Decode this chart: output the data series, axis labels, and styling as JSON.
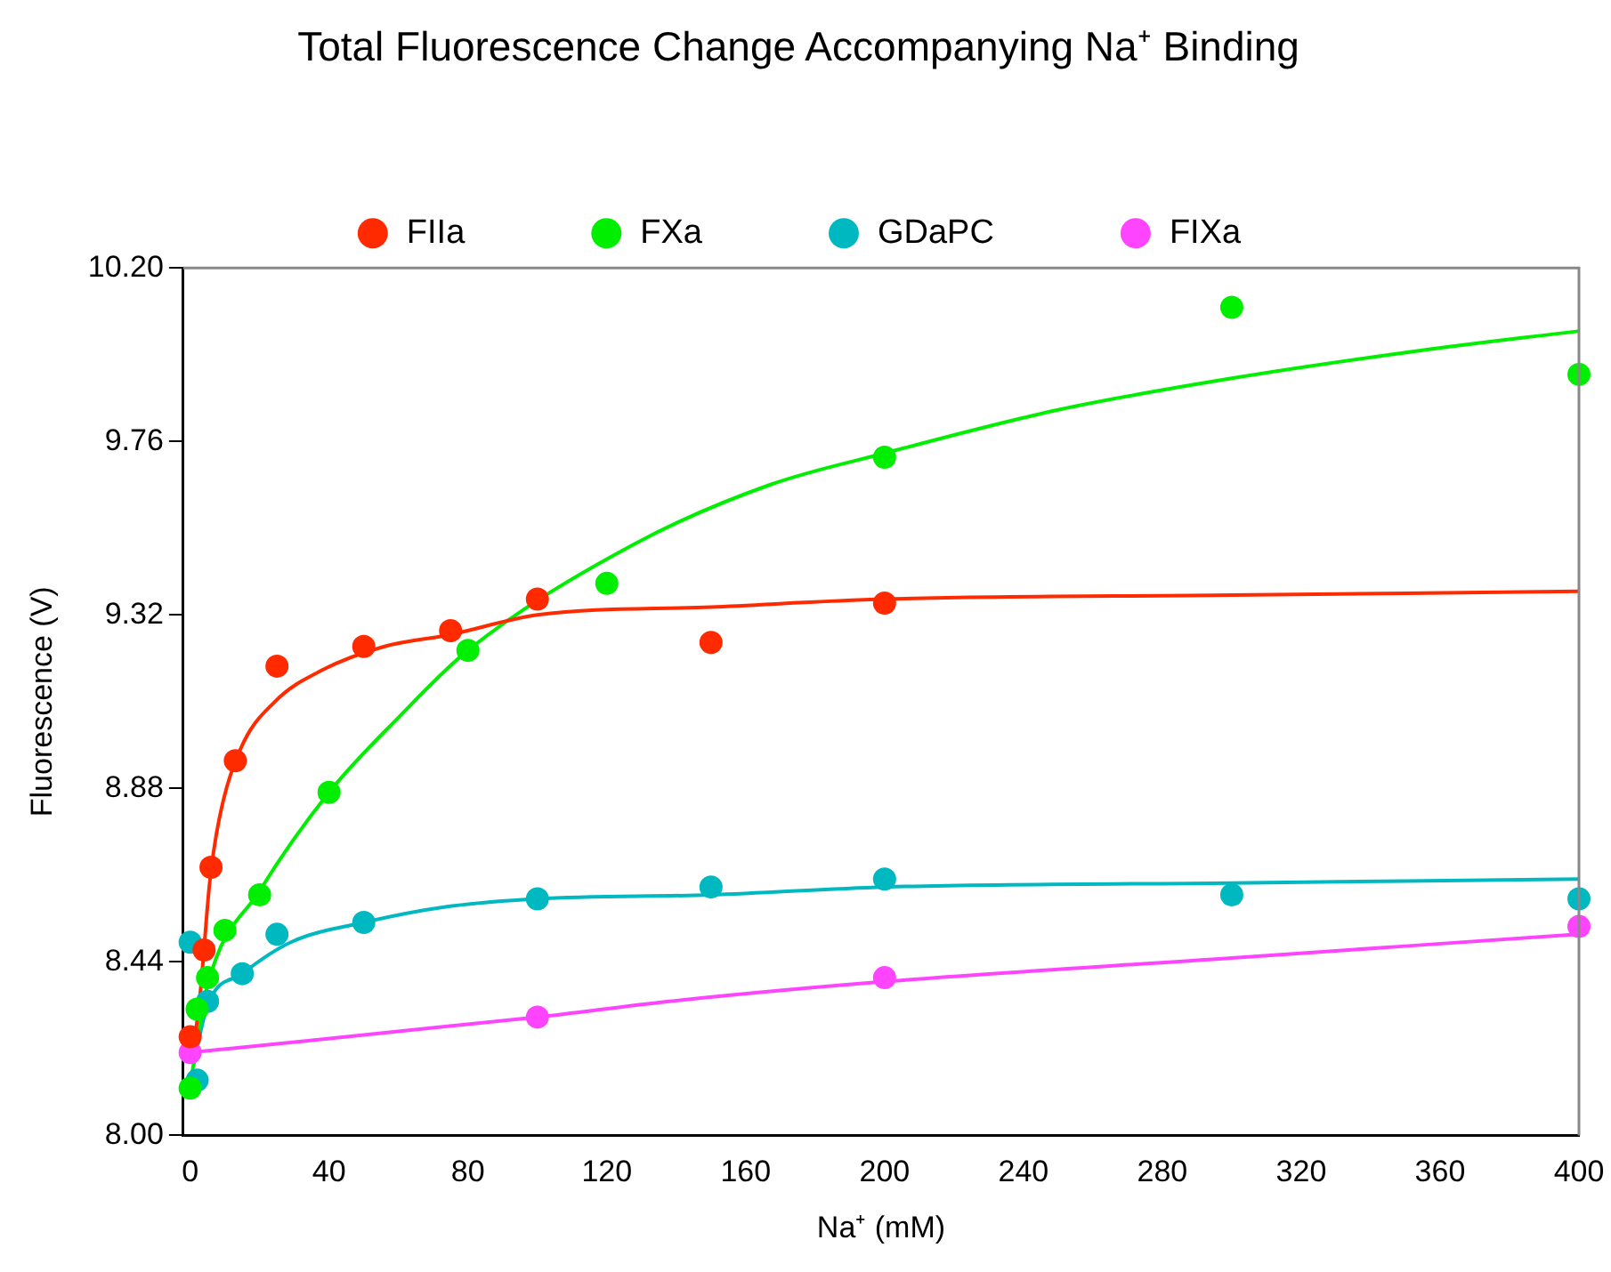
{
  "chart_data": {
    "type": "scatter",
    "title": "Total Fluorescence Change Accompanying Na⁺ Binding",
    "xlabel": "Na⁺ (mM)",
    "ylabel": "Fluorescence (V)",
    "xlim": [
      -2,
      400
    ],
    "xticks": [
      0,
      40,
      80,
      120,
      160,
      200,
      240,
      280,
      320,
      360,
      400
    ],
    "ylim": [
      8.0,
      10.2
    ],
    "yticks": [
      {
        "value": 8.0,
        "label": "8.00"
      },
      {
        "value": 8.44,
        "label": "8.44"
      },
      {
        "value": 8.88,
        "label": "8.88"
      },
      {
        "value": 9.32,
        "label": "9.32"
      },
      {
        "value": 9.76,
        "label": "9.76"
      },
      {
        "value": 10.2,
        "label": "10.20"
      }
    ],
    "grid": false,
    "legend": "top",
    "marker": "circle",
    "series": [
      {
        "name": "FIIa",
        "color": "#ff2a00",
        "x": [
          0,
          4,
          6,
          13,
          25,
          50,
          75,
          100,
          150,
          200
        ],
        "values": [
          8.25,
          8.47,
          8.68,
          8.95,
          9.19,
          9.24,
          9.28,
          9.36,
          9.25,
          9.35
        ]
      },
      {
        "name": "FXa",
        "color": "#00ee00",
        "x": [
          0,
          2,
          5,
          10,
          20,
          40,
          80,
          120,
          200,
          300,
          400
        ],
        "values": [
          8.12,
          8.32,
          8.4,
          8.52,
          8.61,
          8.87,
          9.23,
          9.4,
          9.72,
          10.1,
          9.93
        ]
      },
      {
        "name": "GDaPC",
        "color": "#00b8c0",
        "x": [
          0,
          2,
          5,
          15,
          25,
          50,
          100,
          150,
          200,
          300,
          400
        ],
        "values": [
          8.49,
          8.14,
          8.34,
          8.41,
          8.51,
          8.54,
          8.6,
          8.63,
          8.65,
          8.61,
          8.6
        ]
      },
      {
        "name": "FIXa",
        "color": "#ff44ff",
        "x": [
          0,
          100,
          200,
          400
        ],
        "values": [
          8.21,
          8.3,
          8.4,
          8.53
        ]
      },
      {
        "type": "line",
        "marker": "none",
        "color": "#ff2a00",
        "x": [
          1,
          3,
          5.6,
          8.3,
          14.5,
          24.4,
          38,
          56,
          75,
          100,
          150,
          200,
          300,
          400
        ],
        "values": [
          8.22,
          8.37,
          8.64,
          8.8,
          8.98,
          9.1,
          9.18,
          9.24,
          9.27,
          9.32,
          9.34,
          9.36,
          9.37,
          9.38
        ]
      },
      {
        "type": "line",
        "marker": "none",
        "color": "#00ee00",
        "x": [
          0,
          5,
          20,
          40,
          60,
          80,
          128,
          167,
          200,
          250,
          300,
          354,
          400
        ],
        "values": [
          8.13,
          8.38,
          8.62,
          8.87,
          9.06,
          9.23,
          9.5,
          9.65,
          9.73,
          9.84,
          9.92,
          9.99,
          10.04
        ]
      },
      {
        "type": "line",
        "marker": "none",
        "color": "#00b8c0",
        "x": [
          1,
          5,
          15,
          29,
          50,
          74,
          100,
          150,
          200,
          300,
          400
        ],
        "values": [
          8.18,
          8.33,
          8.41,
          8.49,
          8.54,
          8.58,
          8.6,
          8.61,
          8.63,
          8.64,
          8.65
        ]
      },
      {
        "type": "line",
        "marker": "none",
        "color": "#ff44ff",
        "x": [
          0,
          100,
          138,
          200,
          300,
          400
        ],
        "values": [
          8.21,
          8.3,
          8.34,
          8.39,
          8.45,
          8.51
        ]
      }
    ]
  }
}
